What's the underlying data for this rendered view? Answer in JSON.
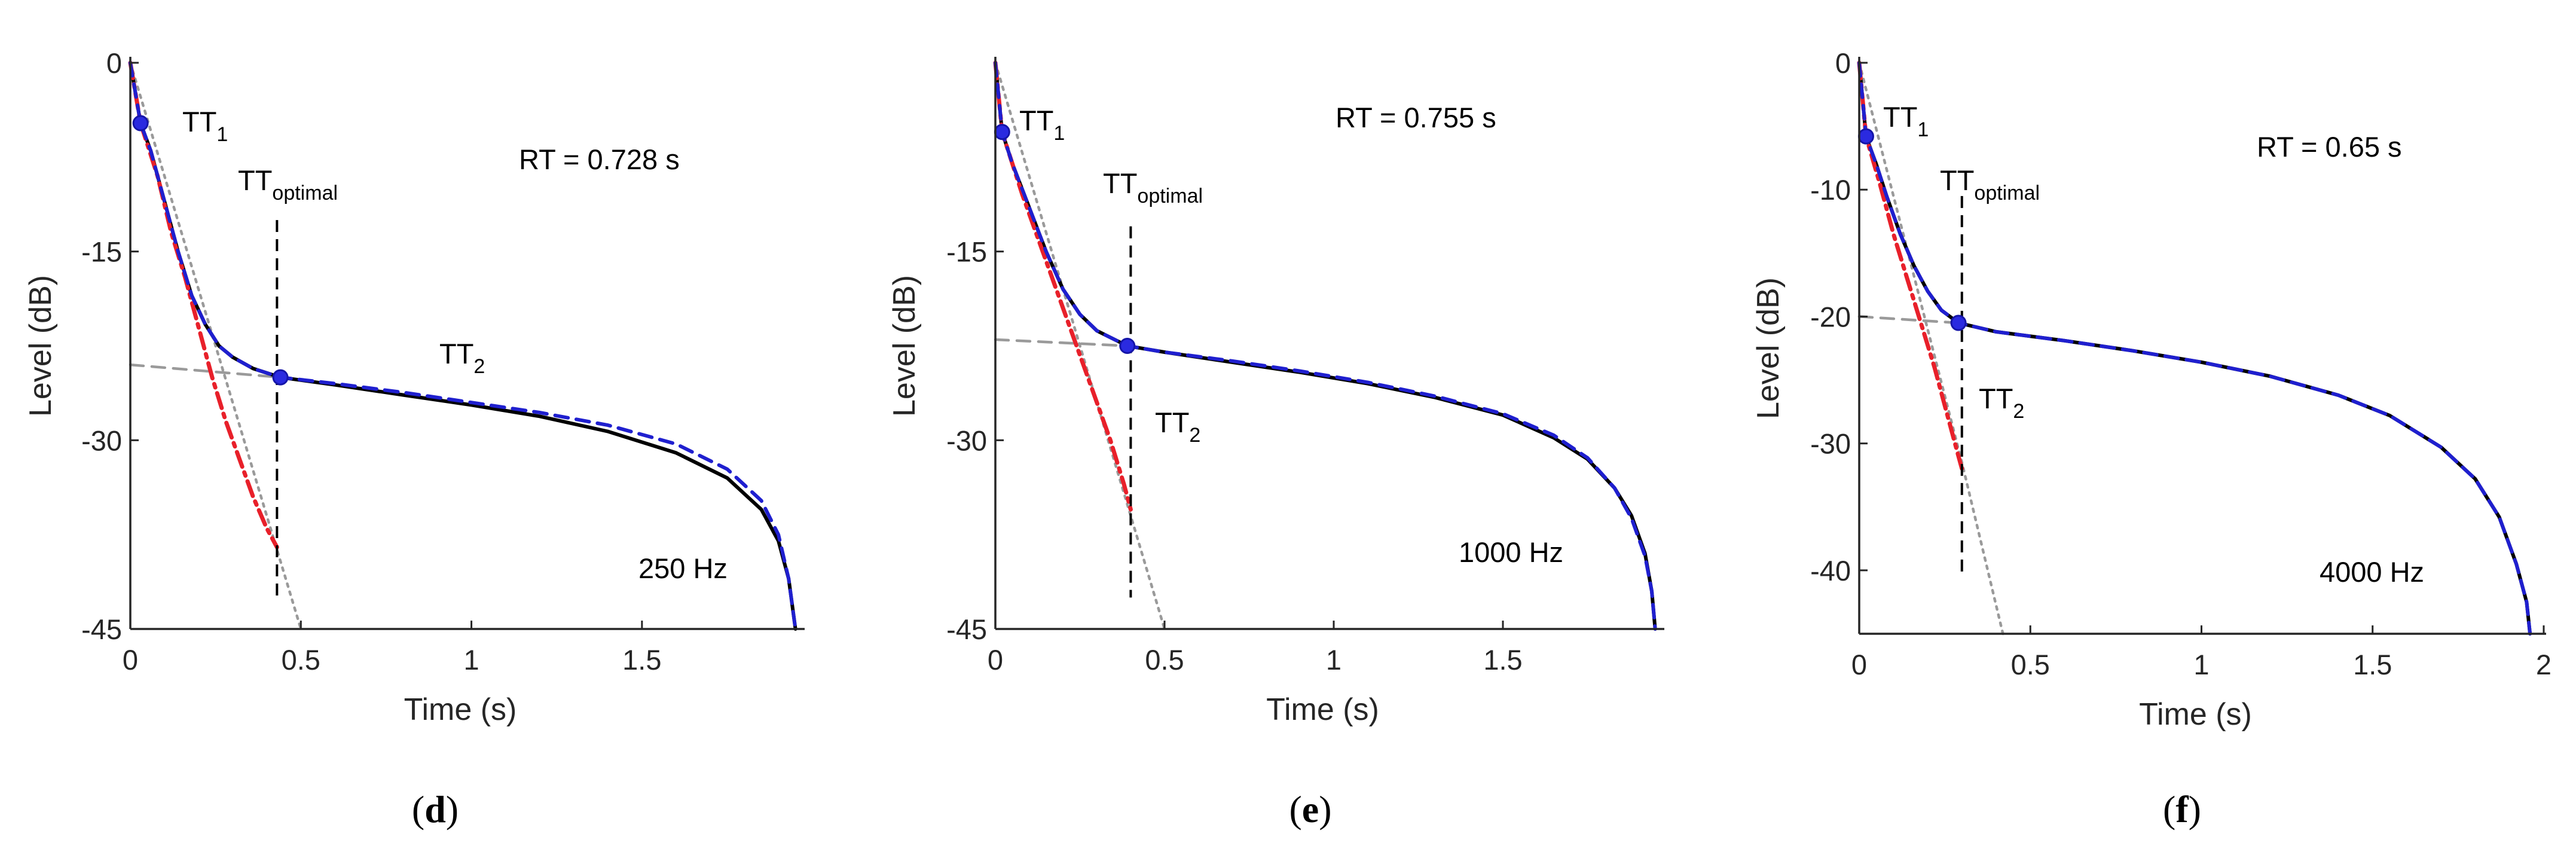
{
  "chart_data": [
    {
      "type": "line",
      "panel": "d",
      "frequency_label": "250 Hz",
      "rt_label": "RT = 0.728 s",
      "xlabel": "Time (s)",
      "ylabel": "Level (dB)",
      "xlim": [
        0,
        1.97
      ],
      "ylim": [
        -45,
        0
      ],
      "xticks": [
        0,
        0.5,
        1,
        1.5
      ],
      "xtick_labels": [
        "0",
        "0.5",
        "1",
        "1.5"
      ],
      "yticks": [
        0,
        -15,
        -30,
        -45
      ],
      "ytick_labels": [
        "0",
        "-15",
        "-30",
        "-45"
      ],
      "annotations": {
        "tt1": {
          "base": "TT",
          "sub": "1"
        },
        "tt_optimal": {
          "base": "TT",
          "sub": "optimal"
        },
        "tt2": {
          "base": "TT",
          "sub": "2"
        }
      },
      "tt1_point": [
        0.03,
        -4.8
      ],
      "tt2_point": [
        0.44,
        -25.0
      ],
      "tt_optimal_x": 0.43,
      "tt_optimal_range": [
        -12.5,
        -42.5
      ],
      "series": [
        {
          "name": "decay curve",
          "color": "#000000",
          "style": "solid",
          "points": [
            [
              0,
              0
            ],
            [
              0.03,
              -4.8
            ],
            [
              0.06,
              -7
            ],
            [
              0.1,
              -11
            ],
            [
              0.14,
              -15
            ],
            [
              0.18,
              -18.5
            ],
            [
              0.22,
              -20.8
            ],
            [
              0.26,
              -22.5
            ],
            [
              0.3,
              -23.4
            ],
            [
              0.36,
              -24.3
            ],
            [
              0.44,
              -25
            ],
            [
              0.6,
              -25.6
            ],
            [
              0.8,
              -26.4
            ],
            [
              1.0,
              -27.2
            ],
            [
              1.2,
              -28.1
            ],
            [
              1.4,
              -29.3
            ],
            [
              1.6,
              -31
            ],
            [
              1.75,
              -33
            ],
            [
              1.85,
              -35.5
            ],
            [
              1.9,
              -38
            ],
            [
              1.93,
              -41
            ],
            [
              1.95,
              -45
            ]
          ]
        },
        {
          "name": "model fit",
          "color": "#1f1fcf",
          "style": "dashed",
          "points": [
            [
              0,
              0
            ],
            [
              0.03,
              -4.8
            ],
            [
              0.06,
              -7
            ],
            [
              0.1,
              -11
            ],
            [
              0.14,
              -15
            ],
            [
              0.18,
              -18.5
            ],
            [
              0.22,
              -20.8
            ],
            [
              0.26,
              -22.5
            ],
            [
              0.3,
              -23.4
            ],
            [
              0.36,
              -24.3
            ],
            [
              0.44,
              -25
            ],
            [
              0.6,
              -25.5
            ],
            [
              0.8,
              -26.2
            ],
            [
              1.0,
              -27
            ],
            [
              1.2,
              -27.8
            ],
            [
              1.4,
              -28.8
            ],
            [
              1.6,
              -30.3
            ],
            [
              1.75,
              -32.3
            ],
            [
              1.85,
              -34.8
            ],
            [
              1.9,
              -37.5
            ],
            [
              1.93,
              -41
            ],
            [
              1.95,
              -45
            ]
          ]
        },
        {
          "name": "first slope fit",
          "color": "#e8202a",
          "style": "dashdot",
          "points": [
            [
              0,
              0
            ],
            [
              0.03,
              -4.8
            ],
            [
              0.08,
              -9
            ],
            [
              0.12,
              -13.5
            ],
            [
              0.16,
              -17
            ],
            [
              0.2,
              -21
            ],
            [
              0.24,
              -25
            ],
            [
              0.28,
              -28.5
            ],
            [
              0.32,
              -31.5
            ],
            [
              0.36,
              -34.5
            ],
            [
              0.4,
              -37
            ],
            [
              0.43,
              -38.5
            ]
          ]
        },
        {
          "name": "first slope extension",
          "color": "#9a9a9a",
          "style": "dotted",
          "points": [
            [
              0,
              0
            ],
            [
              0.1,
              -9
            ],
            [
              0.2,
              -18
            ],
            [
              0.3,
              -27
            ],
            [
              0.4,
              -36
            ],
            [
              0.5,
              -45
            ]
          ]
        },
        {
          "name": "second slope extension",
          "color": "#9a9a9a",
          "style": "dashed",
          "points": [
            [
              0,
              -24
            ],
            [
              0.44,
              -25
            ]
          ]
        }
      ]
    },
    {
      "type": "line",
      "panel": "e",
      "frequency_label": "1000 Hz",
      "rt_label": "RT = 0.755 s",
      "xlabel": "Time (s)",
      "ylabel": "Level (dB)",
      "xlim": [
        0,
        1.97
      ],
      "ylim": [
        -45,
        0
      ],
      "xticks": [
        0,
        0.5,
        1,
        1.5
      ],
      "xtick_labels": [
        "0",
        "0.5",
        "1",
        "1.5"
      ],
      "yticks": [
        -15,
        -30,
        -45
      ],
      "ytick_labels": [
        "-15",
        "-30",
        "-45"
      ],
      "annotations": {
        "tt1": {
          "base": "TT",
          "sub": "1"
        },
        "tt_optimal": {
          "base": "TT",
          "sub": "optimal"
        },
        "tt2": {
          "base": "TT",
          "sub": "2"
        }
      },
      "tt1_point": [
        0.02,
        -5.5
      ],
      "tt2_point": [
        0.39,
        -22.5
      ],
      "tt_optimal_x": 0.4,
      "tt_optimal_range": [
        -13,
        -42.5
      ],
      "series": [
        {
          "name": "decay curve",
          "color": "#000000",
          "style": "solid",
          "points": [
            [
              0,
              0
            ],
            [
              0.02,
              -5.5
            ],
            [
              0.05,
              -8
            ],
            [
              0.1,
              -11.5
            ],
            [
              0.15,
              -15
            ],
            [
              0.2,
              -18
            ],
            [
              0.25,
              -20
            ],
            [
              0.3,
              -21.3
            ],
            [
              0.39,
              -22.5
            ],
            [
              0.5,
              -23
            ],
            [
              0.7,
              -23.8
            ],
            [
              0.9,
              -24.6
            ],
            [
              1.1,
              -25.5
            ],
            [
              1.3,
              -26.6
            ],
            [
              1.5,
              -28
            ],
            [
              1.65,
              -29.8
            ],
            [
              1.75,
              -31.5
            ],
            [
              1.83,
              -33.8
            ],
            [
              1.88,
              -36
            ],
            [
              1.92,
              -39
            ],
            [
              1.94,
              -42
            ],
            [
              1.95,
              -45
            ]
          ]
        },
        {
          "name": "model fit",
          "color": "#1f1fcf",
          "style": "dashed",
          "points": [
            [
              0,
              0
            ],
            [
              0.02,
              -5.5
            ],
            [
              0.05,
              -8
            ],
            [
              0.1,
              -11.5
            ],
            [
              0.15,
              -15
            ],
            [
              0.2,
              -18
            ],
            [
              0.25,
              -20
            ],
            [
              0.3,
              -21.3
            ],
            [
              0.39,
              -22.5
            ],
            [
              0.5,
              -23
            ],
            [
              0.7,
              -23.7
            ],
            [
              0.9,
              -24.5
            ],
            [
              1.1,
              -25.4
            ],
            [
              1.3,
              -26.5
            ],
            [
              1.5,
              -27.9
            ],
            [
              1.65,
              -29.6
            ],
            [
              1.75,
              -31.4
            ],
            [
              1.83,
              -33.8
            ],
            [
              1.88,
              -36.2
            ],
            [
              1.92,
              -39.2
            ],
            [
              1.94,
              -42
            ],
            [
              1.95,
              -45
            ]
          ]
        },
        {
          "name": "first slope fit",
          "color": "#e8202a",
          "style": "dashdot",
          "points": [
            [
              0,
              0
            ],
            [
              0.02,
              -5.5
            ],
            [
              0.08,
              -10.5
            ],
            [
              0.14,
              -15
            ],
            [
              0.2,
              -19.5
            ],
            [
              0.26,
              -24
            ],
            [
              0.3,
              -27
            ],
            [
              0.34,
              -30
            ],
            [
              0.38,
              -33.5
            ],
            [
              0.4,
              -35.5
            ]
          ]
        },
        {
          "name": "first slope extension",
          "color": "#9a9a9a",
          "style": "dotted",
          "points": [
            [
              0,
              0
            ],
            [
              0.1,
              -9
            ],
            [
              0.2,
              -18
            ],
            [
              0.3,
              -27
            ],
            [
              0.4,
              -36
            ],
            [
              0.5,
              -45
            ]
          ]
        },
        {
          "name": "second slope extension",
          "color": "#9a9a9a",
          "style": "dashed",
          "points": [
            [
              0,
              -22
            ],
            [
              0.39,
              -22.5
            ]
          ]
        }
      ]
    },
    {
      "type": "line",
      "panel": "f",
      "frequency_label": "4000 Hz",
      "rt_label": "RT = 0.65 s",
      "xlabel": "Time (s)",
      "ylabel": "Level (dB)",
      "xlim": [
        0,
        2
      ],
      "ylim": [
        -45,
        0
      ],
      "xticks": [
        0,
        0.5,
        1,
        1.5,
        2
      ],
      "xtick_labels": [
        "0",
        "0.5",
        "1",
        "1.5",
        "2"
      ],
      "yticks": [
        0,
        -10,
        -20,
        -30,
        -40
      ],
      "ytick_labels": [
        "0",
        "-10",
        "-20",
        "-30",
        "-40"
      ],
      "annotations": {
        "tt1": {
          "base": "TT",
          "sub": "1"
        },
        "tt_optimal": {
          "base": "TT",
          "sub": "optimal"
        },
        "tt2": {
          "base": "TT",
          "sub": "2"
        }
      },
      "tt1_point": [
        0.02,
        -5.8
      ],
      "tt2_point": [
        0.29,
        -20.5
      ],
      "tt_optimal_x": 0.3,
      "tt_optimal_range": [
        -10.5,
        -40.5
      ],
      "series": [
        {
          "name": "decay curve",
          "color": "#000000",
          "style": "solid",
          "points": [
            [
              0,
              0
            ],
            [
              0.02,
              -5.8
            ],
            [
              0.05,
              -8
            ],
            [
              0.08,
              -10.5
            ],
            [
              0.12,
              -13.5
            ],
            [
              0.16,
              -16
            ],
            [
              0.2,
              -18
            ],
            [
              0.24,
              -19.5
            ],
            [
              0.29,
              -20.5
            ],
            [
              0.4,
              -21.2
            ],
            [
              0.6,
              -21.9
            ],
            [
              0.8,
              -22.7
            ],
            [
              1.0,
              -23.6
            ],
            [
              1.2,
              -24.7
            ],
            [
              1.4,
              -26.2
            ],
            [
              1.55,
              -27.8
            ],
            [
              1.7,
              -30.3
            ],
            [
              1.8,
              -32.8
            ],
            [
              1.87,
              -35.8
            ],
            [
              1.92,
              -39.5
            ],
            [
              1.95,
              -42.5
            ],
            [
              1.96,
              -45
            ]
          ]
        },
        {
          "name": "model fit",
          "color": "#1f1fcf",
          "style": "dashed",
          "points": [
            [
              0,
              0
            ],
            [
              0.02,
              -5.8
            ],
            [
              0.05,
              -8
            ],
            [
              0.08,
              -10.5
            ],
            [
              0.12,
              -13.5
            ],
            [
              0.16,
              -16
            ],
            [
              0.2,
              -18
            ],
            [
              0.24,
              -19.5
            ],
            [
              0.29,
              -20.5
            ],
            [
              0.4,
              -21.2
            ],
            [
              0.6,
              -21.9
            ],
            [
              0.8,
              -22.7
            ],
            [
              1.0,
              -23.6
            ],
            [
              1.2,
              -24.7
            ],
            [
              1.4,
              -26.2
            ],
            [
              1.55,
              -27.8
            ],
            [
              1.7,
              -30.3
            ],
            [
              1.8,
              -32.8
            ],
            [
              1.87,
              -35.8
            ],
            [
              1.92,
              -39.5
            ],
            [
              1.95,
              -42.5
            ],
            [
              1.96,
              -45
            ]
          ]
        },
        {
          "name": "first slope fit",
          "color": "#e8202a",
          "style": "dashdot",
          "points": [
            [
              0,
              0
            ],
            [
              0.02,
              -5.8
            ],
            [
              0.06,
              -9.5
            ],
            [
              0.1,
              -13.5
            ],
            [
              0.14,
              -17
            ],
            [
              0.18,
              -20.5
            ],
            [
              0.22,
              -24
            ],
            [
              0.26,
              -28
            ],
            [
              0.29,
              -31
            ],
            [
              0.3,
              -32
            ]
          ]
        },
        {
          "name": "first slope extension",
          "color": "#9a9a9a",
          "style": "dotted",
          "points": [
            [
              0,
              0
            ],
            [
              0.1,
              -10.5
            ],
            [
              0.2,
              -21
            ],
            [
              0.3,
              -31.5
            ],
            [
              0.42,
              -45
            ]
          ]
        },
        {
          "name": "second slope extension",
          "color": "#9a9a9a",
          "style": "dashed",
          "points": [
            [
              0,
              -20
            ],
            [
              0.29,
              -20.5
            ]
          ]
        }
      ]
    }
  ],
  "panel_labels": [
    {
      "open": "(",
      "letter": "d",
      "close": ")"
    },
    {
      "open": "(",
      "letter": "e",
      "close": ")"
    },
    {
      "open": "(",
      "letter": "f",
      "close": ")"
    }
  ]
}
